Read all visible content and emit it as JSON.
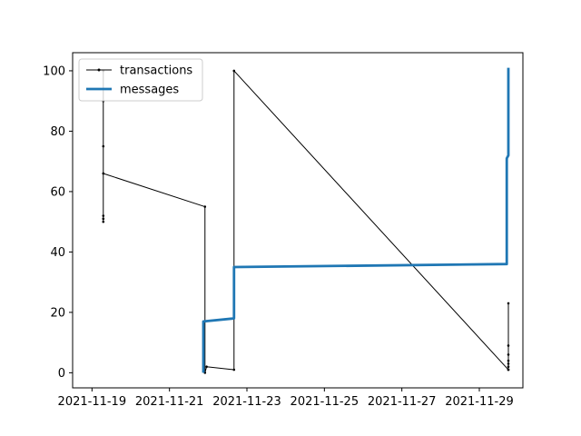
{
  "chart_data": {
    "type": "line",
    "title": "",
    "xlabel": "",
    "ylabel": "",
    "xlim": [
      "2021-11-18T12:00",
      "2021-11-30T03:00"
    ],
    "ylim": [
      -5,
      106
    ],
    "grid": false,
    "legend": "upper-left",
    "x_ticks": [
      "2021-11-19",
      "2021-11-21",
      "2021-11-23",
      "2021-11-25",
      "2021-11-27",
      "2021-11-29"
    ],
    "y_ticks": [
      0,
      20,
      40,
      60,
      80,
      100
    ],
    "series": [
      {
        "name": "transactions",
        "color": "#000000",
        "style": "thin-line-with-point-markers",
        "points": [
          [
            "2021-11-19T07:00",
            100
          ],
          [
            "2021-11-19T07:00",
            90
          ],
          [
            "2021-11-19T07:00",
            75
          ],
          [
            "2021-11-19T07:00",
            52
          ],
          [
            "2021-11-19T07:00",
            51
          ],
          [
            "2021-11-19T07:00",
            50
          ],
          [
            "2021-11-19T07:00",
            66
          ],
          [
            "2021-11-21T22:00",
            55
          ],
          [
            "2021-11-21T22:00",
            0
          ],
          [
            "2021-11-21T23:00",
            2
          ],
          [
            "2021-11-22T16:00",
            1
          ],
          [
            "2021-11-22T16:00",
            100
          ],
          [
            "2021-11-29T18:00",
            1
          ],
          [
            "2021-11-29T18:00",
            23
          ],
          [
            "2021-11-29T18:00",
            9
          ],
          [
            "2021-11-29T18:00",
            6
          ],
          [
            "2021-11-29T18:00",
            4
          ],
          [
            "2021-11-29T18:00",
            3
          ],
          [
            "2021-11-29T18:00",
            2
          ],
          [
            "2021-11-29T18:00",
            1
          ]
        ]
      },
      {
        "name": "messages",
        "color": "#1f77b4",
        "style": "thick-line",
        "points": [
          [
            "2021-11-21T21:00",
            0
          ],
          [
            "2021-11-21T21:00",
            17
          ],
          [
            "2021-11-22T16:00",
            18
          ],
          [
            "2021-11-22T16:00",
            35
          ],
          [
            "2021-11-29T17:00",
            36
          ],
          [
            "2021-11-29T17:00",
            54
          ],
          [
            "2021-11-29T17:00",
            71
          ],
          [
            "2021-11-29T18:00",
            72
          ],
          [
            "2021-11-29T18:00",
            101
          ]
        ]
      }
    ]
  }
}
